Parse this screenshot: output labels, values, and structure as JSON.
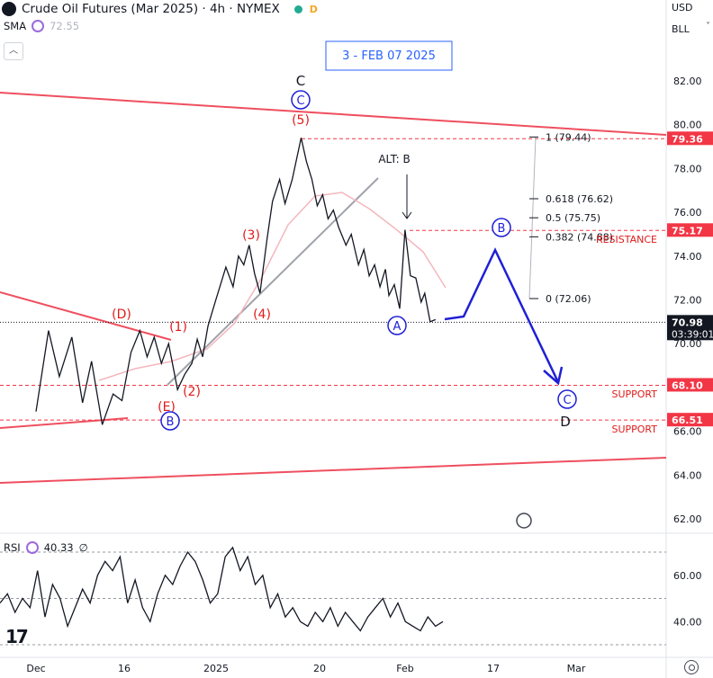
{
  "header": {
    "title": "Crude Oil Futures (Mar 2025) · 4h · NYMEX",
    "status_dot_color": "#22ab94",
    "badge_letter": "D",
    "sma_label": "SMA",
    "sma_value": "72.55",
    "currency": "USD",
    "unit": "BLL"
  },
  "chart_data": {
    "type": "line",
    "annotation_box": "3 - FEB 07 2025",
    "price_axis_ticks": [
      "82.00",
      "80.00",
      "78.00",
      "76.00",
      "74.00",
      "72.00",
      "70.00",
      "68.00",
      "66.00",
      "64.00",
      "62.00"
    ],
    "time_axis_labels": [
      "Dec",
      "16",
      "2025",
      "20",
      "Feb",
      "17",
      "Mar"
    ],
    "price_tags": [
      {
        "value": "79.36",
        "color": "#f23645"
      },
      {
        "value": "75.17",
        "color": "#f23645"
      },
      {
        "value": "70.98",
        "color": "#131722",
        "countdown": "03:39:01"
      },
      {
        "value": "68.10",
        "color": "#f23645"
      },
      {
        "value": "66.51",
        "color": "#f23645"
      }
    ],
    "fib_levels": [
      {
        "label": "1 (79.44)",
        "price": 79.44
      },
      {
        "label": "0.618 (76.62)",
        "price": 76.62
      },
      {
        "label": "0.5 (75.75)",
        "price": 75.75
      },
      {
        "label": "0.382 (74.88)",
        "price": 74.88
      },
      {
        "label": "0 (72.06)",
        "price": 72.06
      }
    ],
    "zone_labels": {
      "resistance": "RESISTANCE",
      "support1": "SUPPORT",
      "support2": "SUPPORT"
    },
    "wave_labels": {
      "w1": "(1)",
      "w2": "(2)",
      "w3": "(3)",
      "w4": "(4)",
      "w5": "(5)",
      "wD": "(D)",
      "wE": "(E)",
      "bigC_top": "C",
      "circC_top": "C",
      "circB_low": "B",
      "circA": "A",
      "circB_proj": "B",
      "circC_proj": "C",
      "bigD": "D",
      "altB": "ALT: B"
    },
    "price_path": [
      [
        66.9,
        0
      ],
      [
        70.6,
        0.07
      ],
      [
        68.5,
        0.13
      ],
      [
        70.3,
        0.2
      ],
      [
        67.3,
        0.26
      ],
      [
        69.2,
        0.31
      ],
      [
        66.3,
        0.37
      ],
      [
        67.7,
        0.43
      ],
      [
        67.4,
        0.48
      ],
      [
        69.6,
        0.53
      ],
      [
        70.6,
        0.58
      ],
      [
        69.4,
        0.62
      ],
      [
        70.3,
        0.66
      ],
      [
        69.1,
        0.7
      ],
      [
        70.0,
        0.74
      ],
      [
        67.9,
        0.79
      ],
      [
        68.6,
        0.83
      ],
      [
        69.1,
        0.87
      ],
      [
        70.2,
        0.9
      ],
      [
        69.4,
        0.93
      ],
      [
        70.8,
        0.96
      ],
      [
        71.9,
        1.0
      ],
      [
        73.5,
        1.06
      ],
      [
        72.6,
        1.1
      ],
      [
        74.0,
        1.13
      ],
      [
        73.6,
        1.16
      ],
      [
        74.5,
        1.19
      ],
      [
        73.2,
        1.22
      ],
      [
        72.3,
        1.25
      ],
      [
        74.8,
        1.29
      ],
      [
        76.5,
        1.32
      ],
      [
        77.5,
        1.36
      ],
      [
        76.4,
        1.39
      ],
      [
        77.5,
        1.43
      ],
      [
        79.4,
        1.48
      ],
      [
        78.3,
        1.51
      ],
      [
        77.5,
        1.54
      ],
      [
        76.3,
        1.57
      ],
      [
        76.8,
        1.6
      ],
      [
        75.7,
        1.63
      ],
      [
        76.1,
        1.66
      ],
      [
        75.3,
        1.69
      ],
      [
        74.5,
        1.73
      ],
      [
        75.0,
        1.76
      ],
      [
        73.6,
        1.8
      ],
      [
        74.3,
        1.83
      ],
      [
        73.1,
        1.86
      ],
      [
        73.6,
        1.89
      ],
      [
        72.6,
        1.92
      ],
      [
        73.4,
        1.95
      ],
      [
        72.2,
        1.97
      ],
      [
        72.7,
        2.0
      ],
      [
        71.6,
        2.03
      ],
      [
        75.2,
        2.06
      ],
      [
        73.1,
        2.09
      ],
      [
        73.0,
        2.12
      ],
      [
        71.9,
        2.15
      ],
      [
        72.3,
        2.17
      ],
      [
        71.0,
        2.2
      ],
      [
        71.1,
        2.23
      ]
    ],
    "rsi": {
      "label": "RSI",
      "value": "40.33",
      "suffix": "∅",
      "ticks": [
        "60.00",
        "40.00"
      ],
      "levels": [
        70,
        50,
        30
      ],
      "values": [
        48,
        52,
        44,
        50,
        46,
        62,
        42,
        56,
        50,
        38,
        46,
        54,
        48,
        60,
        66,
        62,
        68,
        48,
        58,
        46,
        40,
        52,
        60,
        56,
        64,
        70,
        66,
        58,
        48,
        52,
        68,
        72,
        62,
        68,
        56,
        60,
        46,
        52,
        42,
        46,
        40,
        38,
        44,
        40,
        46,
        38,
        44,
        40,
        36,
        42,
        46,
        50,
        42,
        48,
        40,
        38,
        36,
        42,
        38,
        40
      ]
    }
  }
}
